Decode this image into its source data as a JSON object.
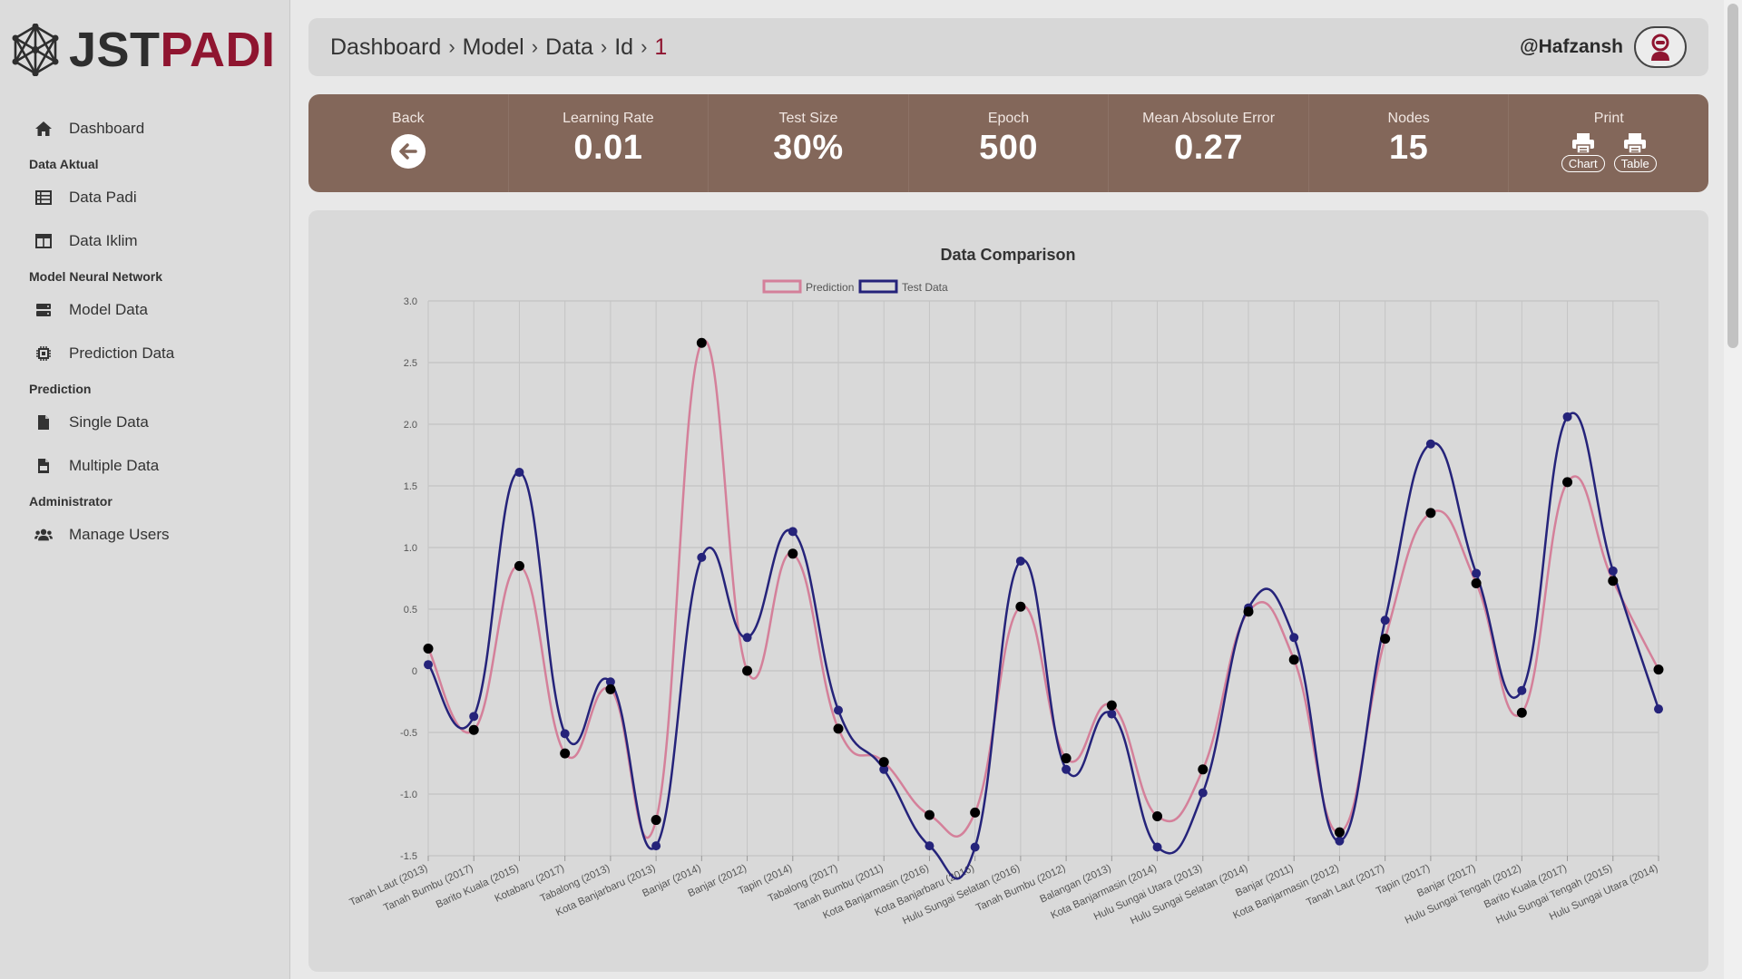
{
  "brand": {
    "part1": "JST",
    "part2": "PADI"
  },
  "sidebar": {
    "items": [
      {
        "type": "link",
        "label": "Dashboard",
        "icon": "home-icon"
      },
      {
        "type": "section",
        "label": "Data Aktual"
      },
      {
        "type": "link",
        "label": "Data Padi",
        "icon": "table-list-icon"
      },
      {
        "type": "link",
        "label": "Data Iklim",
        "icon": "table-columns-icon"
      },
      {
        "type": "section",
        "label": "Model Neural Network"
      },
      {
        "type": "link",
        "label": "Model Data",
        "icon": "server-icon"
      },
      {
        "type": "link",
        "label": "Prediction Data",
        "icon": "chip-icon"
      },
      {
        "type": "section",
        "label": "Prediction"
      },
      {
        "type": "link",
        "label": "Single Data",
        "icon": "file-icon"
      },
      {
        "type": "link",
        "label": "Multiple Data",
        "icon": "csv-file-icon"
      },
      {
        "type": "section",
        "label": "Administrator"
      },
      {
        "type": "link",
        "label": "Manage Users",
        "icon": "users-icon"
      }
    ]
  },
  "breadcrumb": [
    "Dashboard",
    "Model",
    "Data",
    "Id",
    "1"
  ],
  "user": {
    "name": "@Hafzansh",
    "avatar_icon": "user-robot-icon"
  },
  "stats": {
    "back_label": "Back",
    "learning_rate": {
      "label": "Learning Rate",
      "value": "0.01"
    },
    "test_size": {
      "label": "Test Size",
      "value": "30%"
    },
    "epoch": {
      "label": "Epoch",
      "value": "500"
    },
    "mae": {
      "label": "Mean Absolute Error",
      "value": "0.27"
    },
    "nodes": {
      "label": "Nodes",
      "value": "15"
    },
    "print_label": "Print",
    "print_chart": "Chart",
    "print_table": "Table"
  },
  "colors": {
    "brand_dark": "#2e2e2e",
    "brand_accent": "#8f1530",
    "stats_bg": "#83675a",
    "prediction": "#d4809a",
    "test": "#25237a"
  },
  "chart_data": {
    "type": "line",
    "title": "Data Comparison",
    "ylim": [
      -1.5,
      3.0
    ],
    "yticks": [
      "3.0",
      "2.5",
      "2.0",
      "1.5",
      "1.0",
      "0.5",
      "0",
      "-0.5",
      "-1.0",
      "-1.5"
    ],
    "grid": true,
    "legend_position": "top-center",
    "categories": [
      "Tanah Laut (2013)",
      "Tanah Bumbu (2017)",
      "Barito Kuala (2015)",
      "Kotabaru (2017)",
      "Tabalong (2013)",
      "Kota Banjarbaru (2013)",
      "Banjar (2014)",
      "Banjar (2012)",
      "Tapin (2014)",
      "Tabalong (2017)",
      "Tanah Bumbu (2011)",
      "Kota Banjarmasin (2016)",
      "Kota Banjarbaru (2016)",
      "Hulu Sungai Selatan (2016)",
      "Tanah Bumbu (2012)",
      "Balangan (2013)",
      "Kota Banjarmasin (2014)",
      "Hulu Sungai Utara (2013)",
      "Hulu Sungai Selatan (2014)",
      "Banjar (2011)",
      "Kota Banjarmasin (2012)",
      "Tanah Laut (2017)",
      "Tapin (2017)",
      "Banjar (2017)",
      "Hulu Sungai Tengah (2012)",
      "Barito Kuala (2017)",
      "Hulu Sungai Tengah (2015)",
      "Hulu Sungai Utara (2014)"
    ],
    "series": [
      {
        "name": "Prediction",
        "color": "#d4809a",
        "values": [
          0.18,
          -0.48,
          0.85,
          -0.67,
          -0.15,
          -1.21,
          2.66,
          0.0,
          0.95,
          -0.47,
          -0.74,
          -1.17,
          -1.15,
          0.52,
          -0.71,
          -0.28,
          -1.18,
          -0.8,
          0.48,
          0.09,
          -1.31,
          0.26,
          1.28,
          0.71,
          -0.34,
          1.53,
          0.73,
          0.01
        ]
      },
      {
        "name": "Test Data",
        "color": "#25237a",
        "values": [
          0.05,
          -0.37,
          1.61,
          -0.51,
          -0.09,
          -1.42,
          0.92,
          0.27,
          1.13,
          -0.32,
          -0.8,
          -1.42,
          -1.43,
          0.89,
          -0.8,
          -0.35,
          -1.43,
          -0.99,
          0.51,
          0.27,
          -1.38,
          0.41,
          1.84,
          0.79,
          -0.16,
          2.06,
          0.81,
          -0.31
        ]
      }
    ]
  }
}
